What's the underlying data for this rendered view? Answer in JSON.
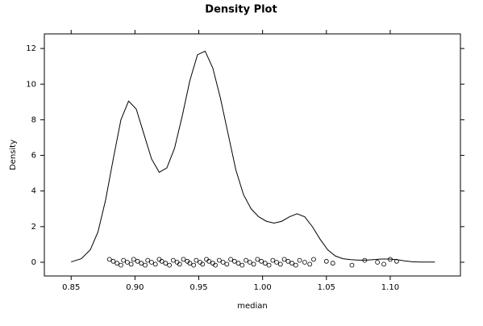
{
  "chart_data": {
    "type": "density",
    "title": "Density Plot",
    "xlabel": "median",
    "ylabel": "Density",
    "x": [
      0.85,
      0.858,
      0.865,
      0.871,
      0.877,
      0.883,
      0.889,
      0.895,
      0.901,
      0.907,
      0.913,
      0.919,
      0.925,
      0.931,
      0.937,
      0.943,
      0.949,
      0.955,
      0.961,
      0.967,
      0.973,
      0.979,
      0.985,
      0.991,
      0.997,
      1.003,
      1.009,
      1.015,
      1.021,
      1.027,
      1.033,
      1.039,
      1.045,
      1.051,
      1.057,
      1.063,
      1.069,
      1.075,
      1.081,
      1.087,
      1.093,
      1.099,
      1.105,
      1.111,
      1.117,
      1.123,
      1.135
    ],
    "y": [
      0.02,
      0.2,
      0.7,
      1.7,
      3.5,
      5.8,
      8.0,
      9.05,
      8.6,
      7.2,
      5.8,
      5.05,
      5.3,
      6.4,
      8.2,
      10.2,
      11.65,
      11.85,
      10.9,
      9.2,
      7.2,
      5.2,
      3.8,
      3.0,
      2.55,
      2.3,
      2.2,
      2.3,
      2.55,
      2.72,
      2.55,
      2.0,
      1.3,
      0.7,
      0.35,
      0.2,
      0.15,
      0.12,
      0.12,
      0.15,
      0.18,
      0.18,
      0.15,
      0.08,
      0.03,
      0.01,
      0.01
    ],
    "points": [
      0.88,
      0.883,
      0.886,
      0.889,
      0.891,
      0.894,
      0.897,
      0.899,
      0.902,
      0.905,
      0.908,
      0.91,
      0.913,
      0.916,
      0.919,
      0.921,
      0.924,
      0.927,
      0.93,
      0.933,
      0.935,
      0.938,
      0.941,
      0.943,
      0.946,
      0.948,
      0.951,
      0.953,
      0.956,
      0.958,
      0.961,
      0.963,
      0.966,
      0.969,
      0.972,
      0.975,
      0.978,
      0.981,
      0.984,
      0.987,
      0.99,
      0.993,
      0.996,
      0.999,
      1.002,
      1.005,
      1.008,
      1.011,
      1.014,
      1.017,
      1.02,
      1.023,
      1.026,
      1.029,
      1.033,
      1.037,
      1.04,
      1.05,
      1.055,
      1.07,
      1.08,
      1.09,
      1.095,
      1.1,
      1.105
    ],
    "xlim": [
      0.829,
      1.155
    ],
    "ylim": [
      -0.77,
      12.82
    ],
    "xticks": [
      {
        "value": 0.85,
        "label": "0.85"
      },
      {
        "value": 0.9,
        "label": "0.90"
      },
      0.95,
      {
        "value": 1.0,
        "label": "1.00"
      },
      1.05,
      {
        "value": 1.1,
        "label": "1.10"
      }
    ],
    "yticks": [
      0,
      2,
      4,
      6,
      8,
      10,
      12
    ],
    "color": "#000000"
  }
}
